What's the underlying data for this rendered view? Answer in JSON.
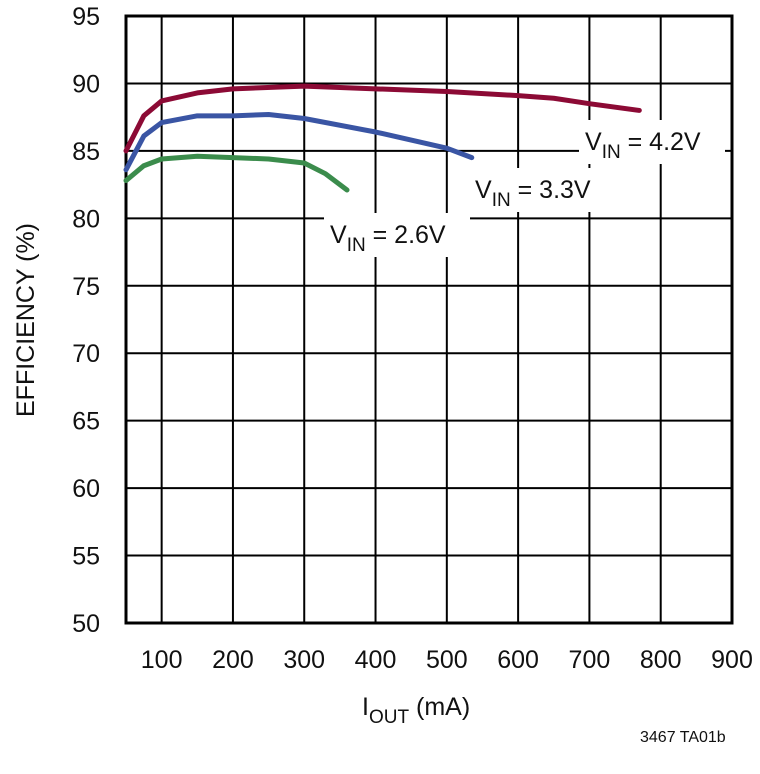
{
  "chart_data": {
    "type": "line",
    "xlabel": [
      "I",
      "OUT",
      " (mA)"
    ],
    "ylabel": "EFFICIENCY (%)",
    "footnote": "3467 TA01b",
    "xlim": [
      50,
      900
    ],
    "xticks": [
      100,
      200,
      300,
      400,
      500,
      600,
      700,
      800,
      900
    ],
    "ylim": [
      50,
      95
    ],
    "yticks": [
      50,
      55,
      60,
      65,
      70,
      75,
      80,
      85,
      90,
      95
    ],
    "grid": true,
    "series": [
      {
        "label": [
          "V",
          "IN",
          " = 4.2V"
        ],
        "color": "#8c0a35",
        "x": [
          50,
          75,
          100,
          150,
          200,
          300,
          400,
          500,
          600,
          650,
          700,
          770
        ],
        "values": [
          85.0,
          87.6,
          88.7,
          89.3,
          89.6,
          89.8,
          89.6,
          89.4,
          89.1,
          88.9,
          88.5,
          88.0
        ]
      },
      {
        "label": [
          "V",
          "IN",
          " = 3.3V"
        ],
        "color": "#3a55a4",
        "x": [
          50,
          75,
          100,
          150,
          200,
          250,
          300,
          400,
          500,
          535
        ],
        "values": [
          83.6,
          86.1,
          87.1,
          87.6,
          87.6,
          87.7,
          87.4,
          86.4,
          85.2,
          84.5
        ]
      },
      {
        "label": [
          "V",
          "IN",
          " = 2.6V"
        ],
        "color": "#3b8c4c",
        "x": [
          50,
          75,
          100,
          150,
          200,
          250,
          300,
          330,
          360
        ],
        "values": [
          82.8,
          83.9,
          84.4,
          84.6,
          84.5,
          84.4,
          84.1,
          83.3,
          82.1
        ]
      }
    ]
  }
}
